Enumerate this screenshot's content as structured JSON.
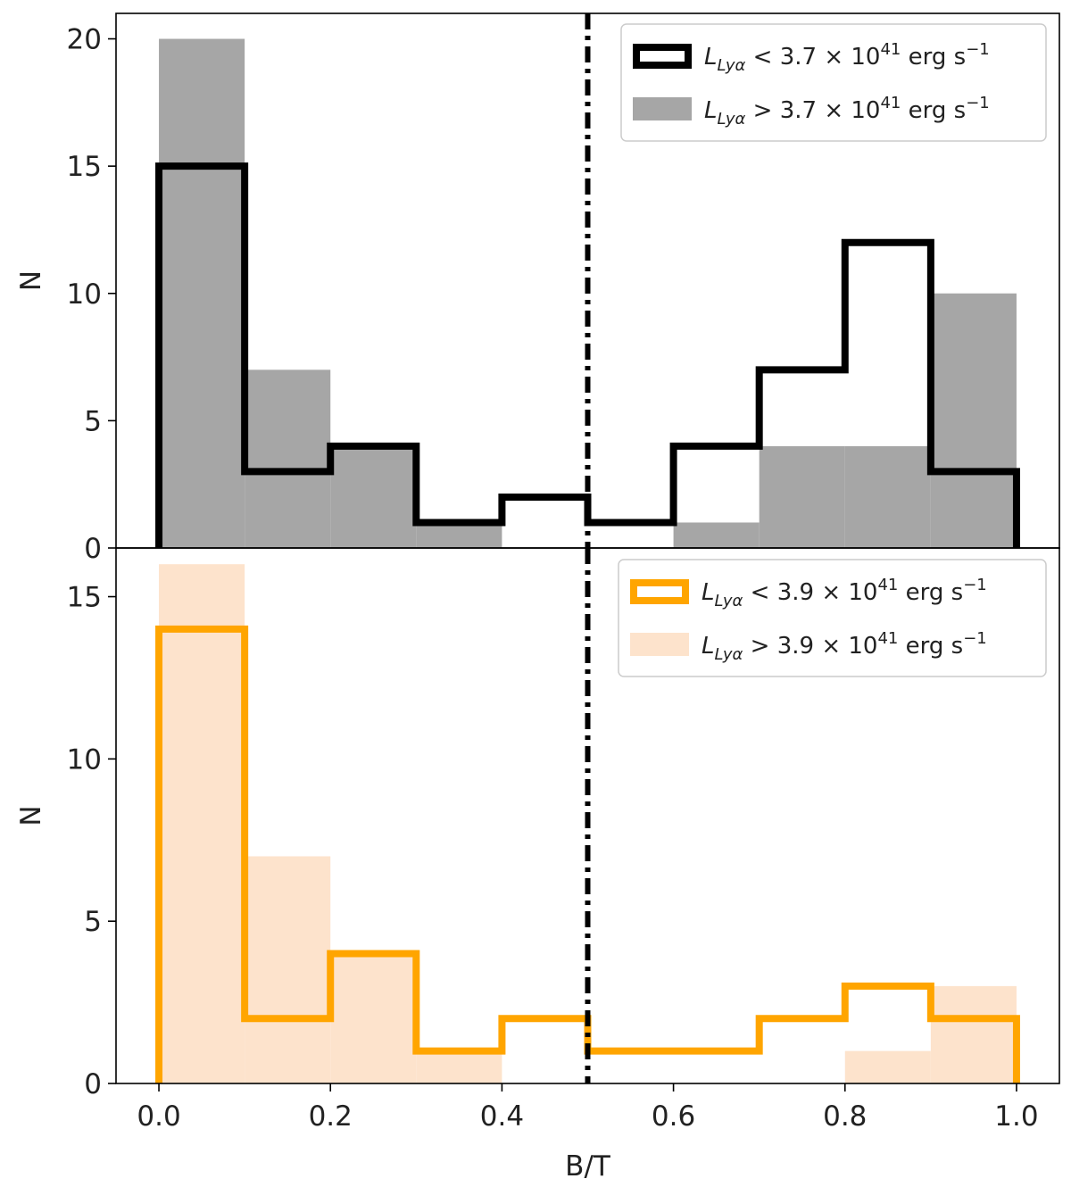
{
  "chart_data": [
    {
      "type": "bar",
      "panel": "top",
      "xlabel": "",
      "ylabel": "N",
      "xlim": [
        -0.05,
        1.05
      ],
      "ylim": [
        0,
        21
      ],
      "yticks": [
        0,
        5,
        10,
        15,
        20
      ],
      "bin_edges": [
        0.0,
        0.1,
        0.2,
        0.3,
        0.4,
        0.5,
        0.6,
        0.7,
        0.8,
        0.9,
        1.0
      ],
      "vline_x": 0.5,
      "series": [
        {
          "name": "L_Lyα > 3.7 × 10^41 erg s^-1",
          "style": "filled",
          "color": "#a6a6a6",
          "values": [
            20,
            7,
            4,
            1,
            0,
            0,
            1,
            4,
            4,
            10
          ]
        },
        {
          "name": "L_Lyα < 3.7 × 10^41 erg s^-1",
          "style": "step",
          "color": "#000000",
          "values": [
            15,
            3,
            4,
            1,
            2,
            1,
            4,
            7,
            12,
            3
          ]
        }
      ],
      "legend": [
        {
          "prefix": "L",
          "sub": "Lyα",
          "rest": " < 3.7 × 10",
          "sup": "41",
          "unit": " erg s",
          "unit_sup": "−1",
          "style": "step",
          "color": "#000000"
        },
        {
          "prefix": "L",
          "sub": "Lyα",
          "rest": " > 3.7 × 10",
          "sup": "41",
          "unit": " erg s",
          "unit_sup": "−1",
          "style": "filled",
          "color": "#a6a6a6"
        }
      ]
    },
    {
      "type": "bar",
      "panel": "bottom",
      "xlabel": "B/T",
      "ylabel": "N",
      "xlim": [
        -0.05,
        1.05
      ],
      "ylim": [
        0,
        16.5
      ],
      "yticks": [
        0,
        5,
        10,
        15
      ],
      "xticks": [
        "0.0",
        "0.2",
        "0.4",
        "0.6",
        "0.8",
        "1.0"
      ],
      "bin_edges": [
        0.0,
        0.1,
        0.2,
        0.3,
        0.4,
        0.5,
        0.6,
        0.7,
        0.8,
        0.9,
        1.0
      ],
      "vline_x": 0.5,
      "series": [
        {
          "name": "L_Lyα > 3.9 × 10^41 erg s^-1",
          "style": "filled",
          "color": "#fde3cc",
          "values": [
            16,
            7,
            4,
            1,
            0,
            0,
            0,
            0,
            1,
            3
          ]
        },
        {
          "name": "L_Lyα < 3.9 × 10^41 erg s^-1",
          "style": "step",
          "color": "#ffa500",
          "values": [
            14,
            2,
            4,
            1,
            2,
            1,
            1,
            2,
            3,
            2
          ]
        }
      ],
      "legend": [
        {
          "prefix": "L",
          "sub": "Lyα",
          "rest": " < 3.9 × 10",
          "sup": "41",
          "unit": " erg s",
          "unit_sup": "−1",
          "style": "step",
          "color": "#ffa500"
        },
        {
          "prefix": "L",
          "sub": "Lyα",
          "rest": " > 3.9 × 10",
          "sup": "41",
          "unit": " erg s",
          "unit_sup": "−1",
          "style": "filled",
          "color": "#fde3cc"
        }
      ]
    }
  ]
}
